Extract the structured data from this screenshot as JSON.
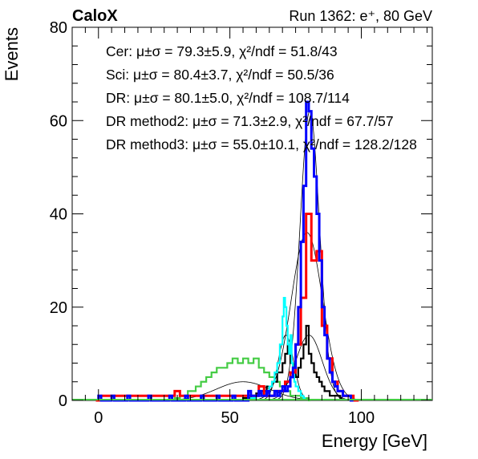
{
  "chart_data": {
    "type": "histogram",
    "title_left": "CaloX",
    "title_right": "Run 1362: e⁺, 80 GeV",
    "xlabel": "Energy [GeV]",
    "ylabel": "Events",
    "xlim": [
      -10,
      127
    ],
    "ylim": [
      0,
      80
    ],
    "x_ticks": [
      0,
      50,
      100
    ],
    "y_ticks": [
      0,
      20,
      40,
      60,
      80
    ],
    "legend": [
      {
        "method": "Cer:",
        "stats": "μ±σ = 79.3±5.9, χ²/ndf = 51.8/43"
      },
      {
        "method": "Sci:",
        "stats": "μ±σ = 80.4±3.7, χ²/ndf = 50.5/36"
      },
      {
        "method": "DR:",
        "stats": "μ±σ = 80.1±5.0, χ²/ndf = 108.7/114"
      },
      {
        "method": "DR method2:",
        "stats": "μ±σ = 71.3±2.9, χ²/ndf = 67.7/57"
      },
      {
        "method": "DR method3:",
        "stats": "μ±σ = 55.0±10.1, χ²/ndf = 128.2/128"
      }
    ],
    "series": [
      {
        "color": "#ff0000",
        "bin_width": 2,
        "points": [
          [
            -1,
            0
          ],
          [
            1,
            1
          ],
          [
            7,
            1
          ],
          [
            15,
            1
          ],
          [
            19,
            1
          ],
          [
            27,
            1
          ],
          [
            29,
            2
          ],
          [
            31,
            1
          ],
          [
            45,
            1
          ],
          [
            49,
            1
          ],
          [
            53,
            1
          ],
          [
            59,
            1
          ],
          [
            61,
            3
          ],
          [
            63,
            1
          ],
          [
            67,
            2
          ],
          [
            69,
            2
          ],
          [
            71,
            4
          ],
          [
            73,
            6
          ],
          [
            75,
            12
          ],
          [
            77,
            22
          ],
          [
            79,
            40
          ],
          [
            81,
            30
          ],
          [
            83,
            32
          ],
          [
            85,
            16
          ],
          [
            87,
            9
          ],
          [
            89,
            4
          ],
          [
            91,
            2
          ],
          [
            93,
            1
          ],
          [
            97,
            0
          ]
        ]
      },
      {
        "color": "#0000ff",
        "bin_width": 1,
        "points": [
          [
            0,
            1
          ],
          [
            1,
            0
          ],
          [
            5,
            1
          ],
          [
            6,
            0
          ],
          [
            11,
            1
          ],
          [
            12,
            0
          ],
          [
            19,
            1
          ],
          [
            20,
            0
          ],
          [
            27,
            1
          ],
          [
            28,
            0
          ],
          [
            33,
            1
          ],
          [
            34,
            0
          ],
          [
            39,
            1
          ],
          [
            40,
            0
          ],
          [
            45,
            1
          ],
          [
            46,
            0
          ],
          [
            51,
            1
          ],
          [
            52,
            0
          ],
          [
            57,
            2
          ],
          [
            58,
            1
          ],
          [
            61,
            2
          ],
          [
            62,
            1
          ],
          [
            64,
            2
          ],
          [
            65,
            1
          ],
          [
            67,
            2
          ],
          [
            68,
            1
          ],
          [
            69,
            2
          ],
          [
            70,
            3
          ],
          [
            71,
            2
          ],
          [
            72,
            3
          ],
          [
            73,
            5
          ],
          [
            74,
            7
          ],
          [
            75,
            12
          ],
          [
            76,
            20
          ],
          [
            77,
            34
          ],
          [
            78,
            46
          ],
          [
            79,
            64
          ],
          [
            80,
            62
          ],
          [
            81,
            54
          ],
          [
            82,
            48
          ],
          [
            83,
            40
          ],
          [
            84,
            30
          ],
          [
            85,
            20
          ],
          [
            86,
            14
          ],
          [
            87,
            9
          ],
          [
            88,
            6
          ],
          [
            89,
            4
          ],
          [
            90,
            3
          ],
          [
            91,
            2
          ],
          [
            92,
            2
          ],
          [
            93,
            1
          ],
          [
            94,
            1
          ],
          [
            95,
            1
          ],
          [
            96,
            0
          ]
        ]
      },
      {
        "color": "#00ffff",
        "bin_width": 0.5,
        "points": [
          [
            58,
            0.5
          ],
          [
            60,
            1
          ],
          [
            62,
            1.5
          ],
          [
            64,
            2
          ],
          [
            65,
            3
          ],
          [
            66,
            4
          ],
          [
            67,
            6
          ],
          [
            68,
            8
          ],
          [
            69,
            12
          ],
          [
            70,
            18
          ],
          [
            70.5,
            22
          ],
          [
            71,
            20
          ],
          [
            71.5,
            16
          ],
          [
            72,
            12
          ],
          [
            72.5,
            10
          ],
          [
            73,
            14
          ],
          [
            73.5,
            8
          ],
          [
            74,
            6
          ],
          [
            74.5,
            4
          ],
          [
            75,
            3
          ],
          [
            76,
            2
          ],
          [
            77,
            1
          ],
          [
            78,
            0.5
          ]
        ]
      },
      {
        "color": "#000000",
        "bin_width": 0.5,
        "points": [
          [
            55,
            0.5
          ],
          [
            58,
            1
          ],
          [
            60,
            1.5
          ],
          [
            62,
            2
          ],
          [
            64,
            3
          ],
          [
            66,
            4
          ],
          [
            68,
            6
          ],
          [
            70,
            8
          ],
          [
            71,
            10
          ],
          [
            72,
            12
          ],
          [
            73,
            8
          ],
          [
            74,
            6
          ],
          [
            75,
            5
          ],
          [
            76,
            7
          ],
          [
            77,
            9
          ],
          [
            78,
            12
          ],
          [
            79,
            16
          ],
          [
            80,
            10
          ],
          [
            81,
            8
          ],
          [
            82,
            6
          ],
          [
            83,
            5
          ],
          [
            84,
            4
          ],
          [
            85,
            3
          ],
          [
            86,
            2
          ],
          [
            87,
            2
          ],
          [
            88,
            1
          ],
          [
            90,
            1
          ],
          [
            92,
            0.5
          ]
        ]
      },
      {
        "color": "#44cc44",
        "bin_width": 0.5,
        "points": [
          [
            29,
            0.5
          ],
          [
            31,
            1
          ],
          [
            34,
            2
          ],
          [
            37,
            3
          ],
          [
            39,
            4
          ],
          [
            41,
            5
          ],
          [
            43,
            6
          ],
          [
            45,
            7
          ],
          [
            47,
            7
          ],
          [
            49,
            8
          ],
          [
            51,
            9
          ],
          [
            53,
            8
          ],
          [
            55,
            9
          ],
          [
            57,
            8
          ],
          [
            59,
            9
          ],
          [
            61,
            7
          ],
          [
            63,
            6
          ],
          [
            65,
            5
          ],
          [
            67,
            4
          ],
          [
            69,
            3
          ],
          [
            71,
            2
          ],
          [
            73,
            1
          ],
          [
            75,
            1
          ],
          [
            77,
            0.5
          ],
          [
            80,
            0
          ]
        ]
      }
    ],
    "fits": [
      {
        "mu": 79.3,
        "sigma": 5.9,
        "amp": 36
      },
      {
        "mu": 80.4,
        "sigma": 3.7,
        "amp": 62
      },
      {
        "mu": 80.1,
        "sigma": 5.0,
        "amp": 14
      },
      {
        "mu": 71.3,
        "sigma": 2.9,
        "amp": 14
      },
      {
        "mu": 55.0,
        "sigma": 10.1,
        "amp": 4
      }
    ]
  }
}
